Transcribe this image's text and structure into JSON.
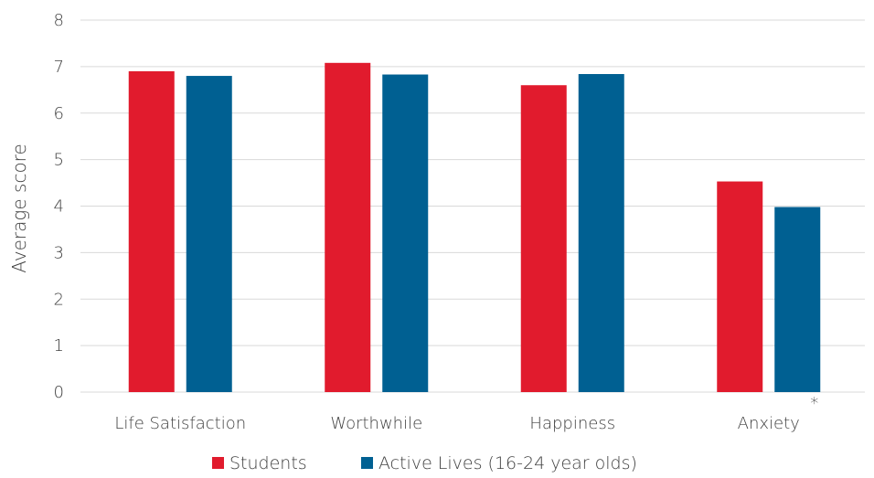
{
  "chart_data": {
    "type": "bar",
    "categories": [
      "Life Satisfaction",
      "Worthwhile",
      "Happiness",
      "Anxiety"
    ],
    "series": [
      {
        "name": "Students",
        "values": [
          6.9,
          7.08,
          6.6,
          4.53
        ],
        "color": "#e11b2d"
      },
      {
        "name": "Active Lives (16-24 year olds)",
        "values": [
          6.8,
          6.83,
          6.84,
          3.98
        ],
        "color": "#006092"
      }
    ],
    "ylabel": "Average score",
    "ylim": [
      0,
      8
    ],
    "yticks": [
      0,
      1,
      2,
      3,
      4,
      5,
      6,
      7,
      8
    ],
    "grid": true,
    "legend_position": "bottom",
    "annotations": [
      {
        "category": "Anxiety",
        "text": "*"
      }
    ]
  }
}
